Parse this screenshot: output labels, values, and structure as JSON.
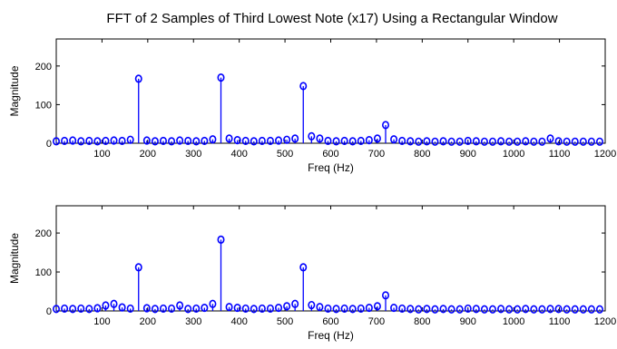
{
  "chart_data": {
    "type": "stem",
    "title": "FFT of 2 Samples of Third Lowest Note (x17) Using a Rectangular Window",
    "color": "#0000ff",
    "panels": [
      {
        "xlabel": "Freq (Hz)",
        "ylabel": "Magnitude",
        "xlim": [
          0,
          1200
        ],
        "ylim": [
          0,
          270
        ],
        "xticks": [
          100,
          200,
          300,
          400,
          500,
          600,
          700,
          800,
          900,
          1000,
          1100,
          1200
        ],
        "yticks": [
          0,
          100,
          200
        ],
        "x": [
          0,
          18,
          36,
          54,
          72,
          90,
          108,
          126,
          144,
          162,
          180,
          198,
          216,
          234,
          252,
          270,
          288,
          306,
          324,
          342,
          360,
          378,
          396,
          414,
          432,
          450,
          468,
          486,
          504,
          522,
          540,
          558,
          576,
          594,
          612,
          630,
          648,
          666,
          684,
          702,
          720,
          738,
          756,
          774,
          792,
          810,
          828,
          846,
          864,
          882,
          900,
          918,
          936,
          954,
          972,
          990,
          1008,
          1026,
          1044,
          1062,
          1080,
          1098,
          1116,
          1134,
          1152,
          1170,
          1188
        ],
        "y": [
          5,
          6,
          7,
          5,
          6,
          5,
          6,
          7,
          6,
          9,
          167,
          7,
          5,
          6,
          5,
          7,
          6,
          5,
          6,
          10,
          170,
          12,
          8,
          6,
          5,
          6,
          6,
          7,
          9,
          12,
          148,
          18,
          12,
          6,
          5,
          6,
          5,
          6,
          8,
          12,
          47,
          10,
          6,
          5,
          4,
          5,
          4,
          5,
          4,
          4,
          6,
          5,
          4,
          4,
          5,
          4,
          4,
          5,
          4,
          4,
          12,
          5,
          4,
          4,
          4,
          4,
          4
        ]
      },
      {
        "xlabel": "Freq (Hz)",
        "ylabel": "Magnitude",
        "xlim": [
          0,
          1200
        ],
        "ylim": [
          0,
          270
        ],
        "xticks": [
          100,
          200,
          300,
          400,
          500,
          600,
          700,
          800,
          900,
          1000,
          1100,
          1200
        ],
        "yticks": [
          0,
          100,
          200
        ],
        "x": [
          0,
          18,
          36,
          54,
          72,
          90,
          108,
          126,
          144,
          162,
          180,
          198,
          216,
          234,
          252,
          270,
          288,
          306,
          324,
          342,
          360,
          378,
          396,
          414,
          432,
          450,
          468,
          486,
          504,
          522,
          540,
          558,
          576,
          594,
          612,
          630,
          648,
          666,
          684,
          702,
          720,
          738,
          756,
          774,
          792,
          810,
          828,
          846,
          864,
          882,
          900,
          918,
          936,
          954,
          972,
          990,
          1008,
          1026,
          1044,
          1062,
          1080,
          1098,
          1116,
          1134,
          1152,
          1170,
          1188
        ],
        "y": [
          5,
          6,
          5,
          6,
          5,
          7,
          14,
          18,
          9,
          6,
          112,
          7,
          5,
          6,
          6,
          14,
          5,
          6,
          8,
          18,
          183,
          10,
          8,
          6,
          5,
          6,
          6,
          8,
          12,
          18,
          112,
          15,
          10,
          6,
          5,
          6,
          5,
          6,
          8,
          12,
          40,
          8,
          6,
          5,
          4,
          5,
          4,
          5,
          4,
          4,
          6,
          5,
          4,
          4,
          5,
          4,
          4,
          5,
          4,
          4,
          5,
          5,
          4,
          4,
          4,
          4,
          4
        ]
      }
    ]
  }
}
